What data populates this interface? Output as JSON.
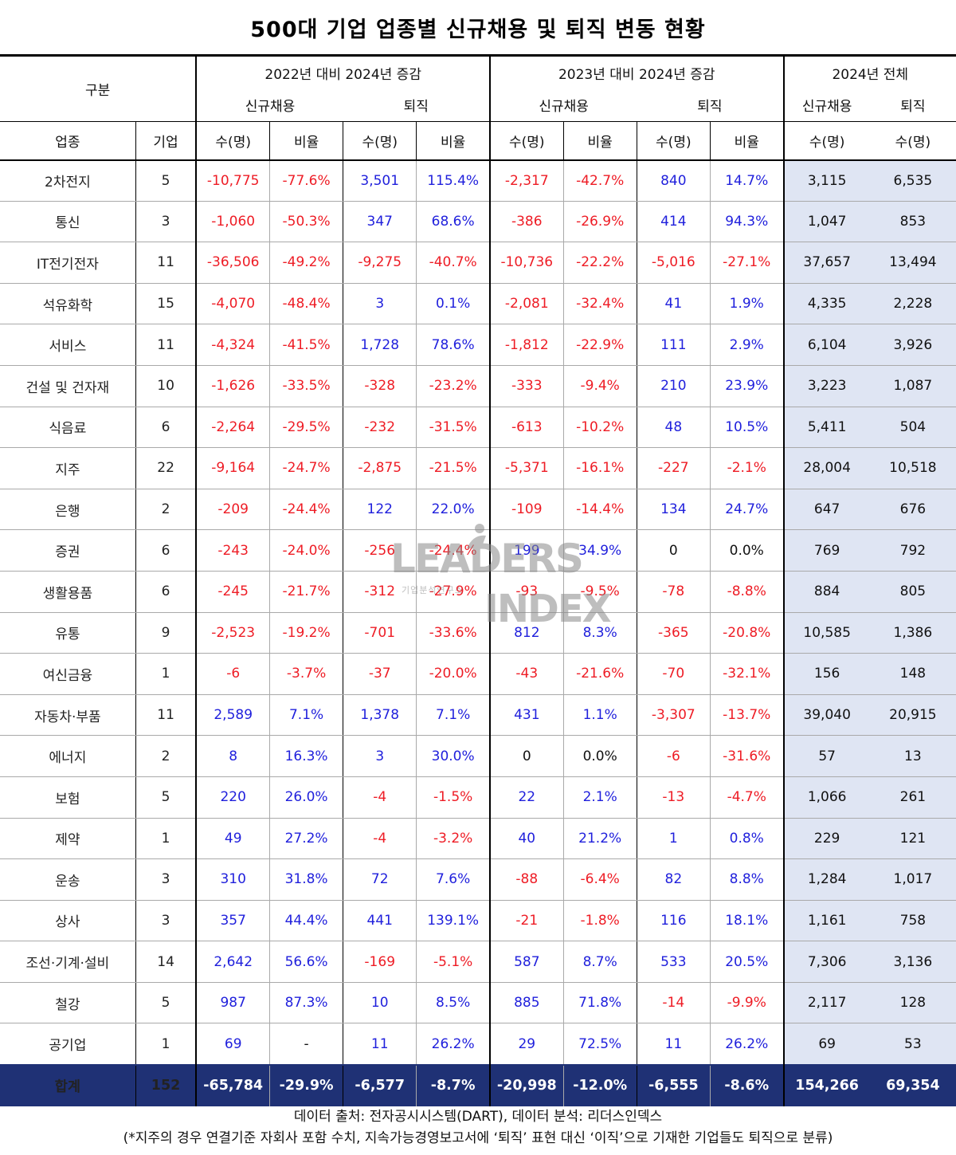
{
  "title": "500대 기업 업종별 신규채용 및 퇴직 변동 현황",
  "header": {
    "category": "구분",
    "group_2022": "2022년 대비 2024년 증감",
    "group_2023": "2023년 대비 2024년 증감",
    "group_2024": "2024년 전체",
    "new_hire": "신규채용",
    "retire": "퇴직",
    "industry": "업종",
    "companies": "기업",
    "count": "수(명)",
    "ratio": "비율"
  },
  "rows": [
    {
      "industry": "2차전지",
      "companies": "5",
      "v": [
        "-10,775",
        "-77.6%",
        "3,501",
        "115.4%",
        "-2,317",
        "-42.7%",
        "840",
        "14.7%",
        "3,115",
        "6,535"
      ]
    },
    {
      "industry": "통신",
      "companies": "3",
      "v": [
        "-1,060",
        "-50.3%",
        "347",
        "68.6%",
        "-386",
        "-26.9%",
        "414",
        "94.3%",
        "1,047",
        "853"
      ]
    },
    {
      "industry": "IT전기전자",
      "companies": "11",
      "v": [
        "-36,506",
        "-49.2%",
        "-9,275",
        "-40.7%",
        "-10,736",
        "-22.2%",
        "-5,016",
        "-27.1%",
        "37,657",
        "13,494"
      ]
    },
    {
      "industry": "석유화학",
      "companies": "15",
      "v": [
        "-4,070",
        "-48.4%",
        "3",
        "0.1%",
        "-2,081",
        "-32.4%",
        "41",
        "1.9%",
        "4,335",
        "2,228"
      ]
    },
    {
      "industry": "서비스",
      "companies": "11",
      "v": [
        "-4,324",
        "-41.5%",
        "1,728",
        "78.6%",
        "-1,812",
        "-22.9%",
        "111",
        "2.9%",
        "6,104",
        "3,926"
      ]
    },
    {
      "industry": "건설 및 건자재",
      "companies": "10",
      "v": [
        "-1,626",
        "-33.5%",
        "-328",
        "-23.2%",
        "-333",
        "-9.4%",
        "210",
        "23.9%",
        "3,223",
        "1,087"
      ]
    },
    {
      "industry": "식음료",
      "companies": "6",
      "v": [
        "-2,264",
        "-29.5%",
        "-232",
        "-31.5%",
        "-613",
        "-10.2%",
        "48",
        "10.5%",
        "5,411",
        "504"
      ]
    },
    {
      "industry": "지주",
      "companies": "22",
      "v": [
        "-9,164",
        "-24.7%",
        "-2,875",
        "-21.5%",
        "-5,371",
        "-16.1%",
        "-227",
        "-2.1%",
        "28,004",
        "10,518"
      ]
    },
    {
      "industry": "은행",
      "companies": "2",
      "v": [
        "-209",
        "-24.4%",
        "122",
        "22.0%",
        "-109",
        "-14.4%",
        "134",
        "24.7%",
        "647",
        "676"
      ]
    },
    {
      "industry": "증권",
      "companies": "6",
      "v": [
        "-243",
        "-24.0%",
        "-256",
        "-24.4%",
        "199",
        "34.9%",
        "0",
        "0.0%",
        "769",
        "792"
      ]
    },
    {
      "industry": "생활용품",
      "companies": "6",
      "v": [
        "-245",
        "-21.7%",
        "-312",
        "-27.9%",
        "-93",
        "-9.5%",
        "-78",
        "-8.8%",
        "884",
        "805"
      ]
    },
    {
      "industry": "유통",
      "companies": "9",
      "v": [
        "-2,523",
        "-19.2%",
        "-701",
        "-33.6%",
        "812",
        "8.3%",
        "-365",
        "-20.8%",
        "10,585",
        "1,386"
      ]
    },
    {
      "industry": "여신금융",
      "companies": "1",
      "v": [
        "-6",
        "-3.7%",
        "-37",
        "-20.0%",
        "-43",
        "-21.6%",
        "-70",
        "-32.1%",
        "156",
        "148"
      ]
    },
    {
      "industry": "자동차·부품",
      "companies": "11",
      "v": [
        "2,589",
        "7.1%",
        "1,378",
        "7.1%",
        "431",
        "1.1%",
        "-3,307",
        "-13.7%",
        "39,040",
        "20,915"
      ]
    },
    {
      "industry": "에너지",
      "companies": "2",
      "v": [
        "8",
        "16.3%",
        "3",
        "30.0%",
        "0",
        "0.0%",
        "-6",
        "-31.6%",
        "57",
        "13"
      ]
    },
    {
      "industry": "보험",
      "companies": "5",
      "v": [
        "220",
        "26.0%",
        "-4",
        "-1.5%",
        "22",
        "2.1%",
        "-13",
        "-4.7%",
        "1,066",
        "261"
      ]
    },
    {
      "industry": "제약",
      "companies": "1",
      "v": [
        "49",
        "27.2%",
        "-4",
        "-3.2%",
        "40",
        "21.2%",
        "1",
        "0.8%",
        "229",
        "121"
      ]
    },
    {
      "industry": "운송",
      "companies": "3",
      "v": [
        "310",
        "31.8%",
        "72",
        "7.6%",
        "-88",
        "-6.4%",
        "82",
        "8.8%",
        "1,284",
        "1,017"
      ]
    },
    {
      "industry": "상사",
      "companies": "3",
      "v": [
        "357",
        "44.4%",
        "441",
        "139.1%",
        "-21",
        "-1.8%",
        "116",
        "18.1%",
        "1,161",
        "758"
      ]
    },
    {
      "industry": "조선·기계·설비",
      "companies": "14",
      "v": [
        "2,642",
        "56.6%",
        "-169",
        "-5.1%",
        "587",
        "8.7%",
        "533",
        "20.5%",
        "7,306",
        "3,136"
      ]
    },
    {
      "industry": "철강",
      "companies": "5",
      "v": [
        "987",
        "87.3%",
        "10",
        "8.5%",
        "885",
        "71.8%",
        "-14",
        "-9.9%",
        "2,117",
        "128"
      ]
    },
    {
      "industry": "공기업",
      "companies": "1",
      "v": [
        "69",
        "-",
        "11",
        "26.2%",
        "29",
        "72.5%",
        "11",
        "26.2%",
        "69",
        "53"
      ]
    }
  ],
  "total": {
    "industry": "합계",
    "companies": "152",
    "v": [
      "-65,784",
      "-29.9%",
      "-6,577",
      "-8.7%",
      "-20,998",
      "-12.0%",
      "-6,555",
      "-8.6%",
      "154,266",
      "69,354"
    ]
  },
  "watermark": {
    "line1": "LEADERS",
    "line2": "INDEX",
    "sub": "기업분석연구소"
  },
  "notes": {
    "source": "데이터 출처: 전자공시시스템(DART), 데이터 분석: 리더스인덱스",
    "footnote": "(*지주의 경우 연결기준 자회사 포함 수치, 지속가능경영보고서에 ‘퇴직’ 표현 대신 ‘이직’으로 기재한 기업들도 퇴직으로 분류)"
  },
  "colors": {
    "negative": "#ee1c25",
    "positive": "#1f1fdc",
    "total_bg": "#1f3175",
    "shade": "#dfe5f3"
  }
}
